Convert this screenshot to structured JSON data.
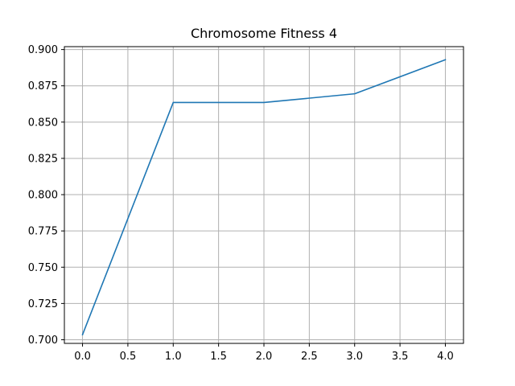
{
  "chart_data": {
    "type": "line",
    "title": "Chromosome Fitness 4",
    "xlabel": "",
    "ylabel": "",
    "x": [
      0,
      1,
      2,
      3,
      4
    ],
    "series": [
      {
        "values": [
          0.7035,
          0.8635,
          0.8635,
          0.8695,
          0.893
        ],
        "color": "#1f77b4"
      }
    ],
    "xlim": [
      -0.2,
      4.2
    ],
    "ylim": [
      0.6975,
      0.902
    ],
    "xticks": [
      0.0,
      0.5,
      1.0,
      1.5,
      2.0,
      2.5,
      3.0,
      3.5,
      4.0
    ],
    "xtick_labels": [
      "0.0",
      "0.5",
      "1.0",
      "1.5",
      "2.0",
      "2.5",
      "3.0",
      "3.5",
      "4.0"
    ],
    "yticks": [
      0.7,
      0.725,
      0.75,
      0.775,
      0.8,
      0.825,
      0.85,
      0.875,
      0.9
    ],
    "ytick_labels": [
      "0.700",
      "0.725",
      "0.750",
      "0.775",
      "0.800",
      "0.825",
      "0.850",
      "0.875",
      "0.900"
    ],
    "grid": true,
    "legend": "none",
    "grid_color": "#b0b0b0",
    "axis_color": "#000000"
  }
}
